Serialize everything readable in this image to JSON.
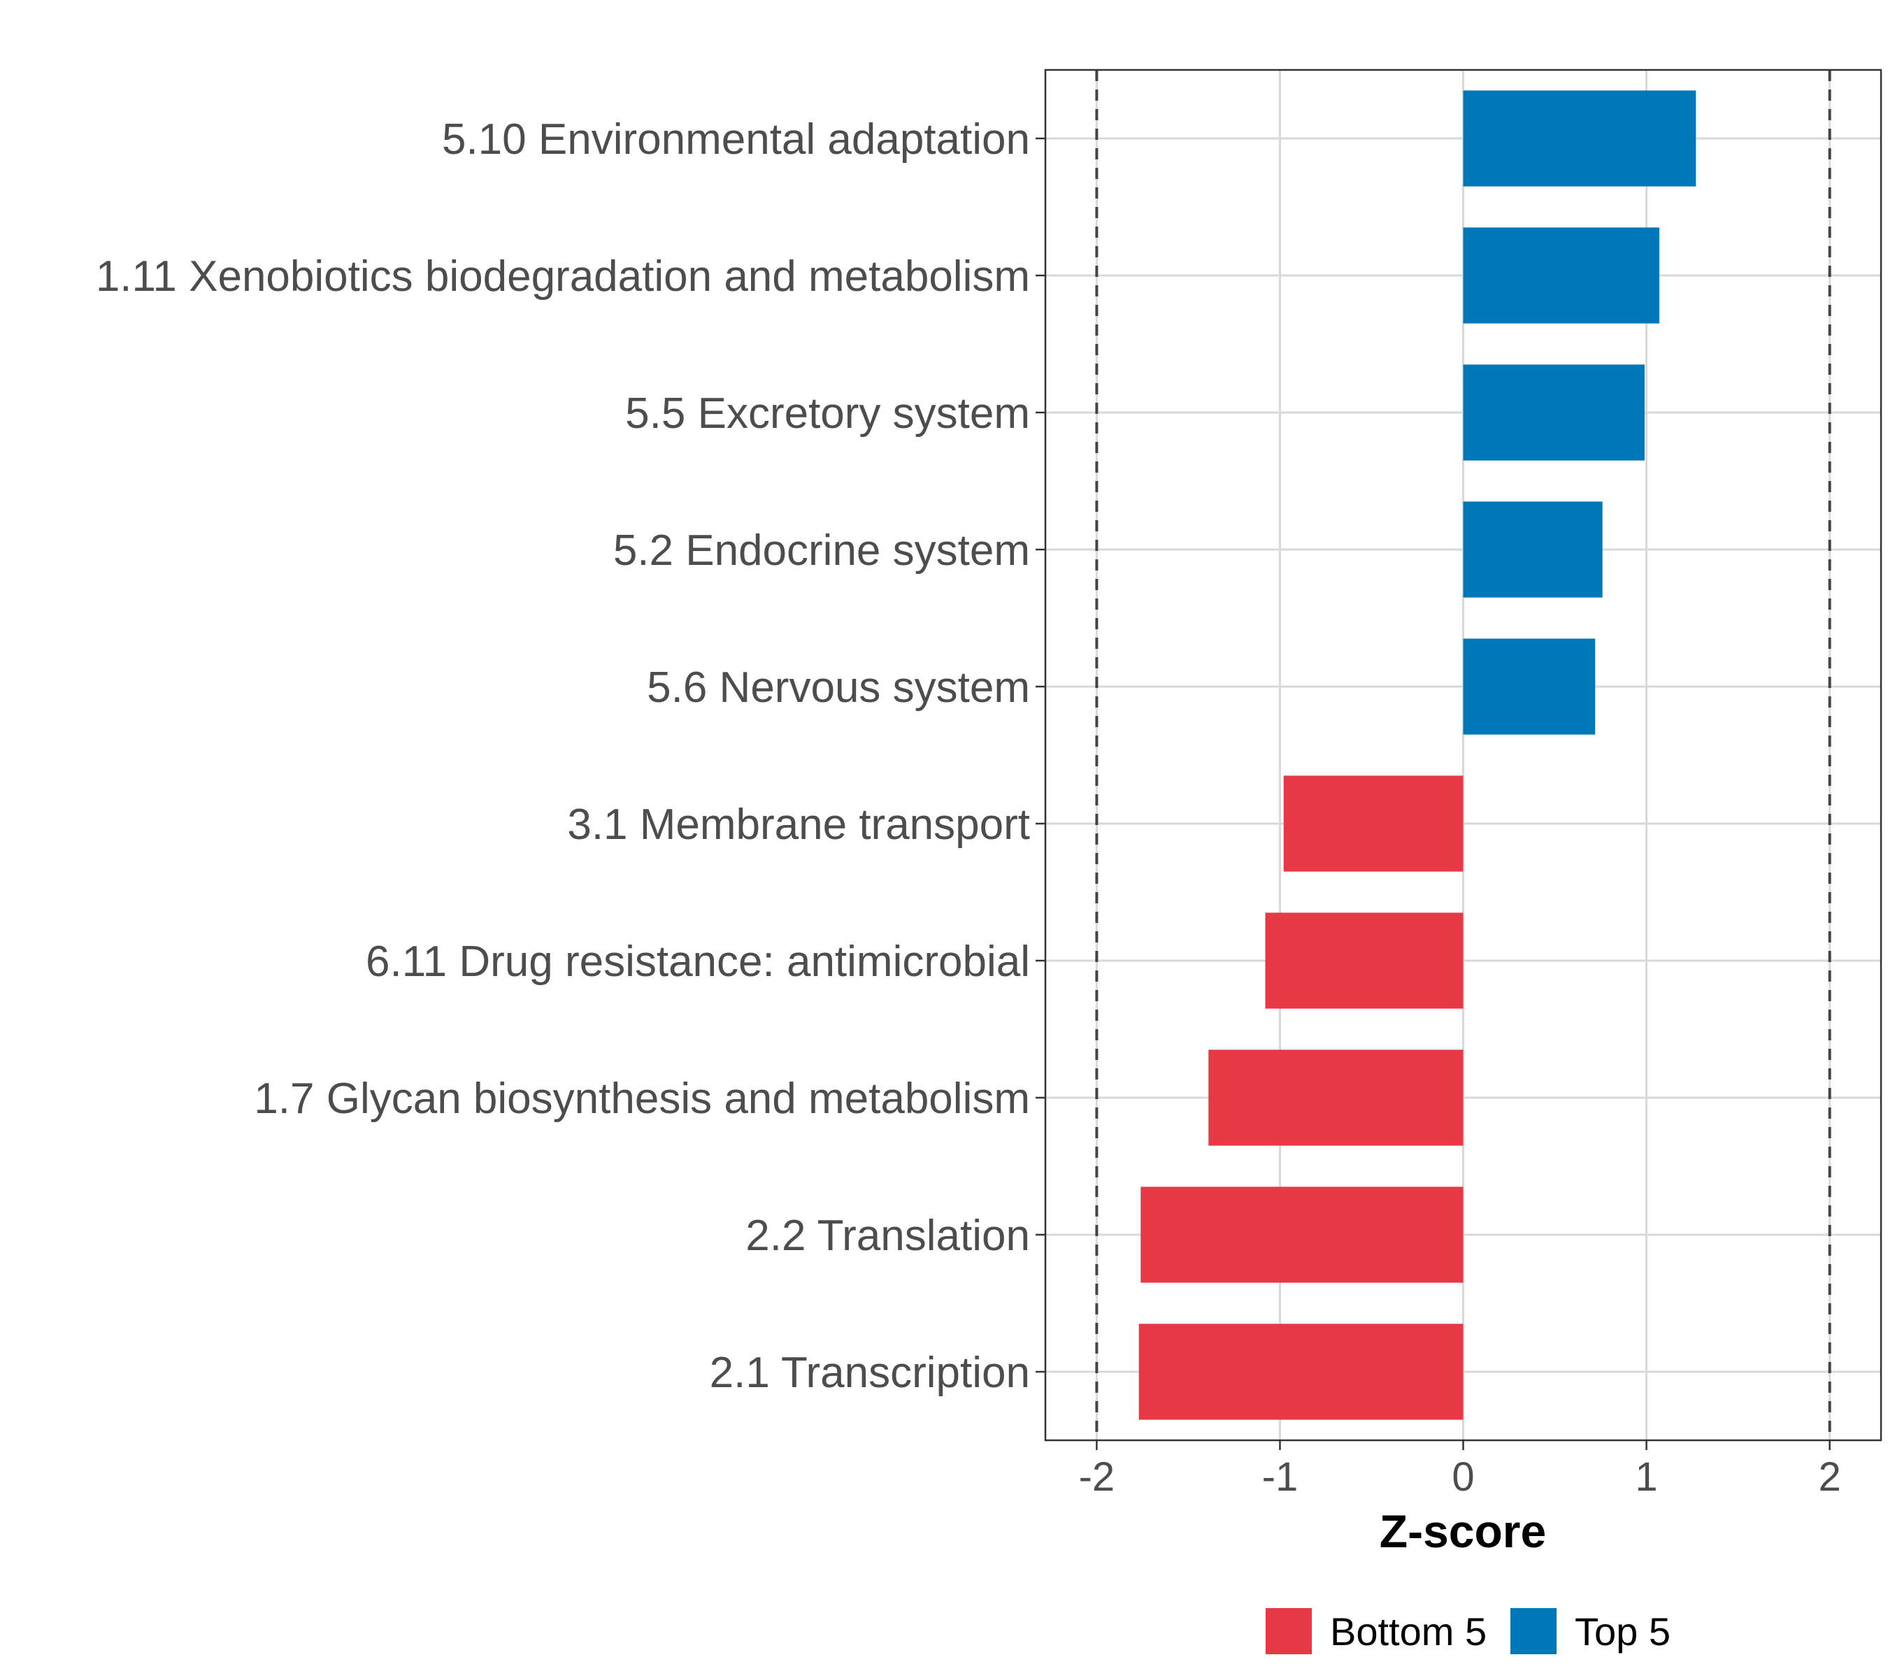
{
  "chart_data": {
    "type": "bar",
    "orientation": "horizontal",
    "categories": [
      "5.10 Environmental adaptation",
      "1.11 Xenobiotics biodegradation and metabolism",
      "5.5 Excretory system",
      "5.2 Endocrine system",
      "5.6 Nervous system",
      "3.1 Membrane transport",
      "6.11 Drug resistance: antimicrobial",
      "1.7 Glycan biosynthesis and metabolism",
      "2.2 Translation",
      "2.1 Transcription"
    ],
    "values": [
      1.27,
      1.07,
      0.99,
      0.76,
      0.72,
      -0.98,
      -1.08,
      -1.39,
      -1.76,
      -1.77
    ],
    "groups": [
      "Top 5",
      "Top 5",
      "Top 5",
      "Top 5",
      "Top 5",
      "Bottom 5",
      "Bottom 5",
      "Bottom 5",
      "Bottom 5",
      "Bottom 5"
    ],
    "xlabel": "Z-score",
    "ylabel": "",
    "xlim": [
      -2.28,
      2.28
    ],
    "xticks": [
      "-2",
      "-1",
      "0",
      "1",
      "2"
    ],
    "tick_values": [
      -2,
      -1,
      0,
      1,
      2
    ],
    "reference_lines": [
      -2,
      2
    ],
    "grid": true,
    "legend": {
      "position": "bottom",
      "items": [
        {
          "label": "Bottom 5",
          "color": "#e63946"
        },
        {
          "label": "Top 5",
          "color": "#0077b6"
        }
      ]
    },
    "colors": {
      "Top 5": "#0077b6",
      "Bottom 5": "#e63946"
    }
  }
}
